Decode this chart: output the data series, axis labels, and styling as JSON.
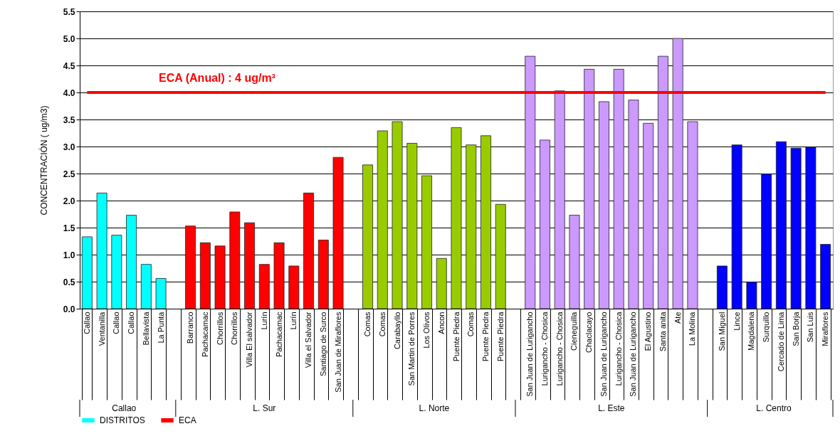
{
  "chart_data": {
    "type": "bar",
    "ylabel": "CONCENTRACIÓN ( ug/m3)",
    "categories": [
      "Callao",
      "Ventanilla",
      "Callao",
      "Callao",
      "Bellavista",
      "La Punta",
      null,
      "Barranco",
      "Pachacamac",
      "Chorrillos",
      "Chorrillos",
      "Villa El salvador",
      "Lurín",
      "Pachacamac",
      "Lurín",
      "Villa el Salvador",
      "Santiago de Surco",
      "San Juan de Miraflores",
      null,
      "Comas",
      "Comas",
      "Carabayllo",
      "San Martin de Porres",
      "Los Olivos",
      "Ancon",
      "Puente Piedra",
      "Comas",
      "Puente Piedra",
      "Puente Piedra",
      null,
      "San Juan de Lurigancho",
      "Lurigancho - Chosica",
      "Lurigancho - Chosica",
      "Cieneguilla",
      "Chaclacayo",
      "San Juan de Lurigancho",
      "Lurigancho - Chosica",
      "San Juan de Lurigancho",
      "El Agustino",
      "Santa anita",
      "Ate",
      "La Molina",
      null,
      "San Miguel",
      "Lince",
      "Magdalena",
      "Surquillo",
      "Cercado de Lima",
      "San Borja",
      "San Luis",
      "Miraflores"
    ],
    "series": [
      {
        "name": "DISTRITOS",
        "color": "#00ffff",
        "colors": [
          "#00ffff",
          "#00ffff",
          "#00ffff",
          "#00ffff",
          "#00ffff",
          "#00ffff",
          null,
          "#ff0000",
          "#ff0000",
          "#ff0000",
          "#ff0000",
          "#ff0000",
          "#ff0000",
          "#ff0000",
          "#ff0000",
          "#ff0000",
          "#ff0000",
          "#ff0000",
          null,
          "#99cc00",
          "#99cc00",
          "#99cc00",
          "#99cc00",
          "#99cc00",
          "#99cc00",
          "#99cc00",
          "#99cc00",
          "#99cc00",
          "#99cc00",
          null,
          "#cc99ff",
          "#cc99ff",
          "#cc99ff",
          "#cc99ff",
          "#cc99ff",
          "#cc99ff",
          "#cc99ff",
          "#cc99ff",
          "#cc99ff",
          "#cc99ff",
          "#cc99ff",
          "#cc99ff",
          null,
          "#0000ff",
          "#0000ff",
          "#0000ff",
          "#0000ff",
          "#0000ff",
          "#0000ff",
          "#0000ff",
          "#0000ff"
        ],
        "values": [
          1.33,
          2.14,
          1.36,
          1.73,
          0.82,
          0.56,
          null,
          1.53,
          1.22,
          1.16,
          1.79,
          1.59,
          0.82,
          1.22,
          0.79,
          2.14,
          1.27,
          2.8,
          null,
          2.66,
          3.29,
          3.46,
          3.06,
          2.46,
          0.93,
          3.35,
          3.03,
          3.2,
          1.93,
          null,
          4.67,
          3.12,
          4.03,
          1.73,
          4.43,
          3.83,
          4.43,
          3.86,
          3.43,
          4.67,
          5.0,
          3.46,
          null,
          0.79,
          3.03,
          0.49,
          2.49,
          3.09,
          2.97,
          2.99,
          1.19
        ]
      },
      {
        "name": "ECA",
        "type": "line",
        "color": "#ff0000",
        "values": [
          4,
          4,
          4,
          4,
          4,
          4,
          4,
          4,
          4,
          4,
          4,
          4,
          4,
          4,
          4,
          4,
          4,
          4,
          4,
          4,
          4,
          4,
          4,
          4,
          4,
          4,
          4,
          4,
          4,
          4,
          4,
          4,
          4,
          4,
          4,
          4,
          4,
          4,
          4,
          4,
          4,
          4,
          4,
          4,
          4,
          4,
          4,
          4,
          4,
          4,
          4
        ]
      }
    ],
    "ylim": [
      0,
      5.5
    ],
    "yticks": [
      {
        "value": 0,
        "label": "0.0"
      },
      {
        "value": 0.5,
        "label": "0.5"
      },
      {
        "value": 1,
        "label": "1.0"
      },
      {
        "value": 1.5,
        "label": "1.5"
      },
      {
        "value": 2,
        "label": "2.0"
      },
      {
        "value": 2.5,
        "label": "2.5"
      },
      {
        "value": 3,
        "label": "3.0"
      },
      {
        "value": 3.5,
        "label": "3.5"
      },
      {
        "value": 4,
        "label": "4.0"
      },
      {
        "value": 4.5,
        "label": "4.5"
      },
      {
        "value": 5,
        "label": "5.0"
      },
      {
        "value": 5.5,
        "label": "5.5"
      }
    ],
    "grid": "y",
    "legend": "bottom",
    "annotations": [
      {
        "text": "ECA (Anual) : 4 ug/m³",
        "y": 4
      },
      "Callao",
      "L. Sur",
      "L. Norte",
      "L. Este",
      "L. Centro"
    ]
  }
}
